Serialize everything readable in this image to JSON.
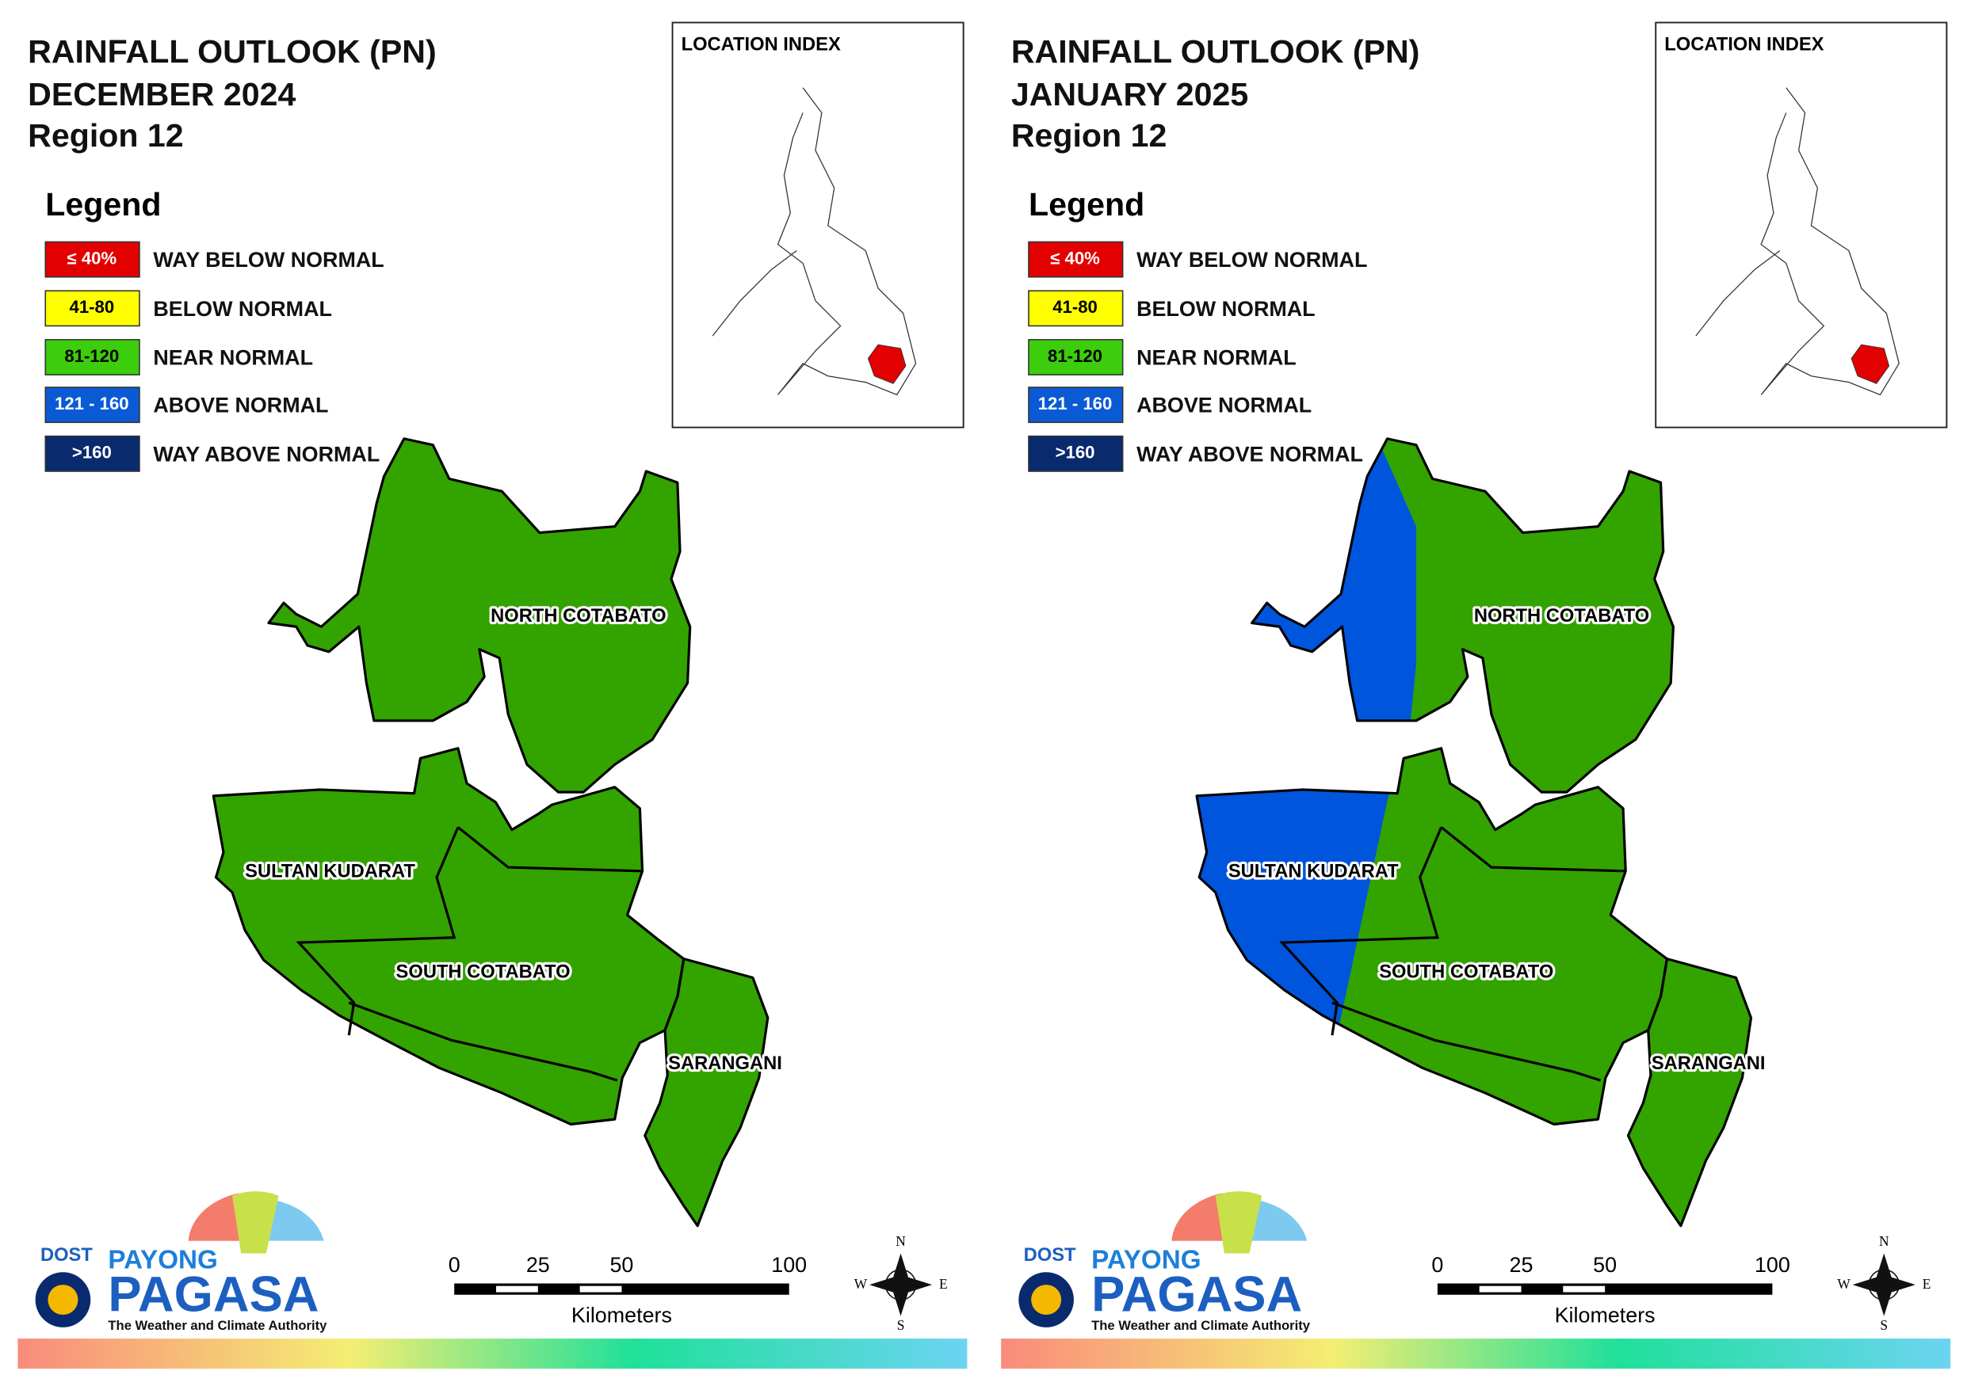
{
  "panels": [
    {
      "title": [
        "RAINFALL OUTLOOK (PN)",
        "DECEMBER 2024",
        "Region 12"
      ],
      "location_index": "LOCATION INDEX",
      "legend_title": "Legend",
      "legend": [
        {
          "range": "≤ 40%",
          "label": "WAY BELOW NORMAL",
          "color": "#e30000"
        },
        {
          "range": "41-80",
          "label": "BELOW NORMAL",
          "color": "#ffff00"
        },
        {
          "range": "81-120",
          "label": "NEAR NORMAL",
          "color": "#3ccd0c"
        },
        {
          "range": "121 - 160",
          "label": "ABOVE NORMAL",
          "color": "#0a5ad6"
        },
        {
          "range": ">160",
          "label": "WAY ABOVE NORMAL",
          "color": "#0a2a6e"
        }
      ],
      "provinces": [
        "NORTH COTABATO",
        "SULTAN KUDARAT",
        "SOUTH COTABATO",
        "SARANGANI"
      ],
      "scale": {
        "ticks": [
          0,
          25,
          50,
          100
        ],
        "unit": "Kilometers"
      },
      "compass": [
        "N",
        "E",
        "S",
        "W"
      ],
      "logo": {
        "dost": "DOST",
        "payong": "PAYONG",
        "pagasa": "PAGASA",
        "tagline": "The Weather and Climate Authority"
      }
    },
    {
      "title": [
        "RAINFALL OUTLOOK (PN)",
        "JANUARY 2025",
        "Region 12"
      ],
      "location_index": "LOCATION INDEX",
      "legend_title": "Legend",
      "legend": [
        {
          "range": "≤ 40%",
          "label": "WAY BELOW NORMAL",
          "color": "#e30000"
        },
        {
          "range": "41-80",
          "label": "BELOW NORMAL",
          "color": "#ffff00"
        },
        {
          "range": "81-120",
          "label": "NEAR NORMAL",
          "color": "#3ccd0c"
        },
        {
          "range": "121 - 160",
          "label": "ABOVE NORMAL",
          "color": "#0a5ad6"
        },
        {
          "range": ">160",
          "label": "WAY ABOVE NORMAL",
          "color": "#0a2a6e"
        }
      ],
      "provinces": [
        "NORTH COTABATO",
        "SULTAN KUDARAT",
        "SOUTH COTABATO",
        "SARANGANI"
      ],
      "scale": {
        "ticks": [
          0,
          25,
          50,
          100
        ],
        "unit": "Kilometers"
      },
      "compass": [
        "N",
        "E",
        "S",
        "W"
      ],
      "logo": {
        "dost": "DOST",
        "payong": "PAYONG",
        "pagasa": "PAGASA",
        "tagline": "The Weather and Climate Authority"
      }
    }
  ]
}
